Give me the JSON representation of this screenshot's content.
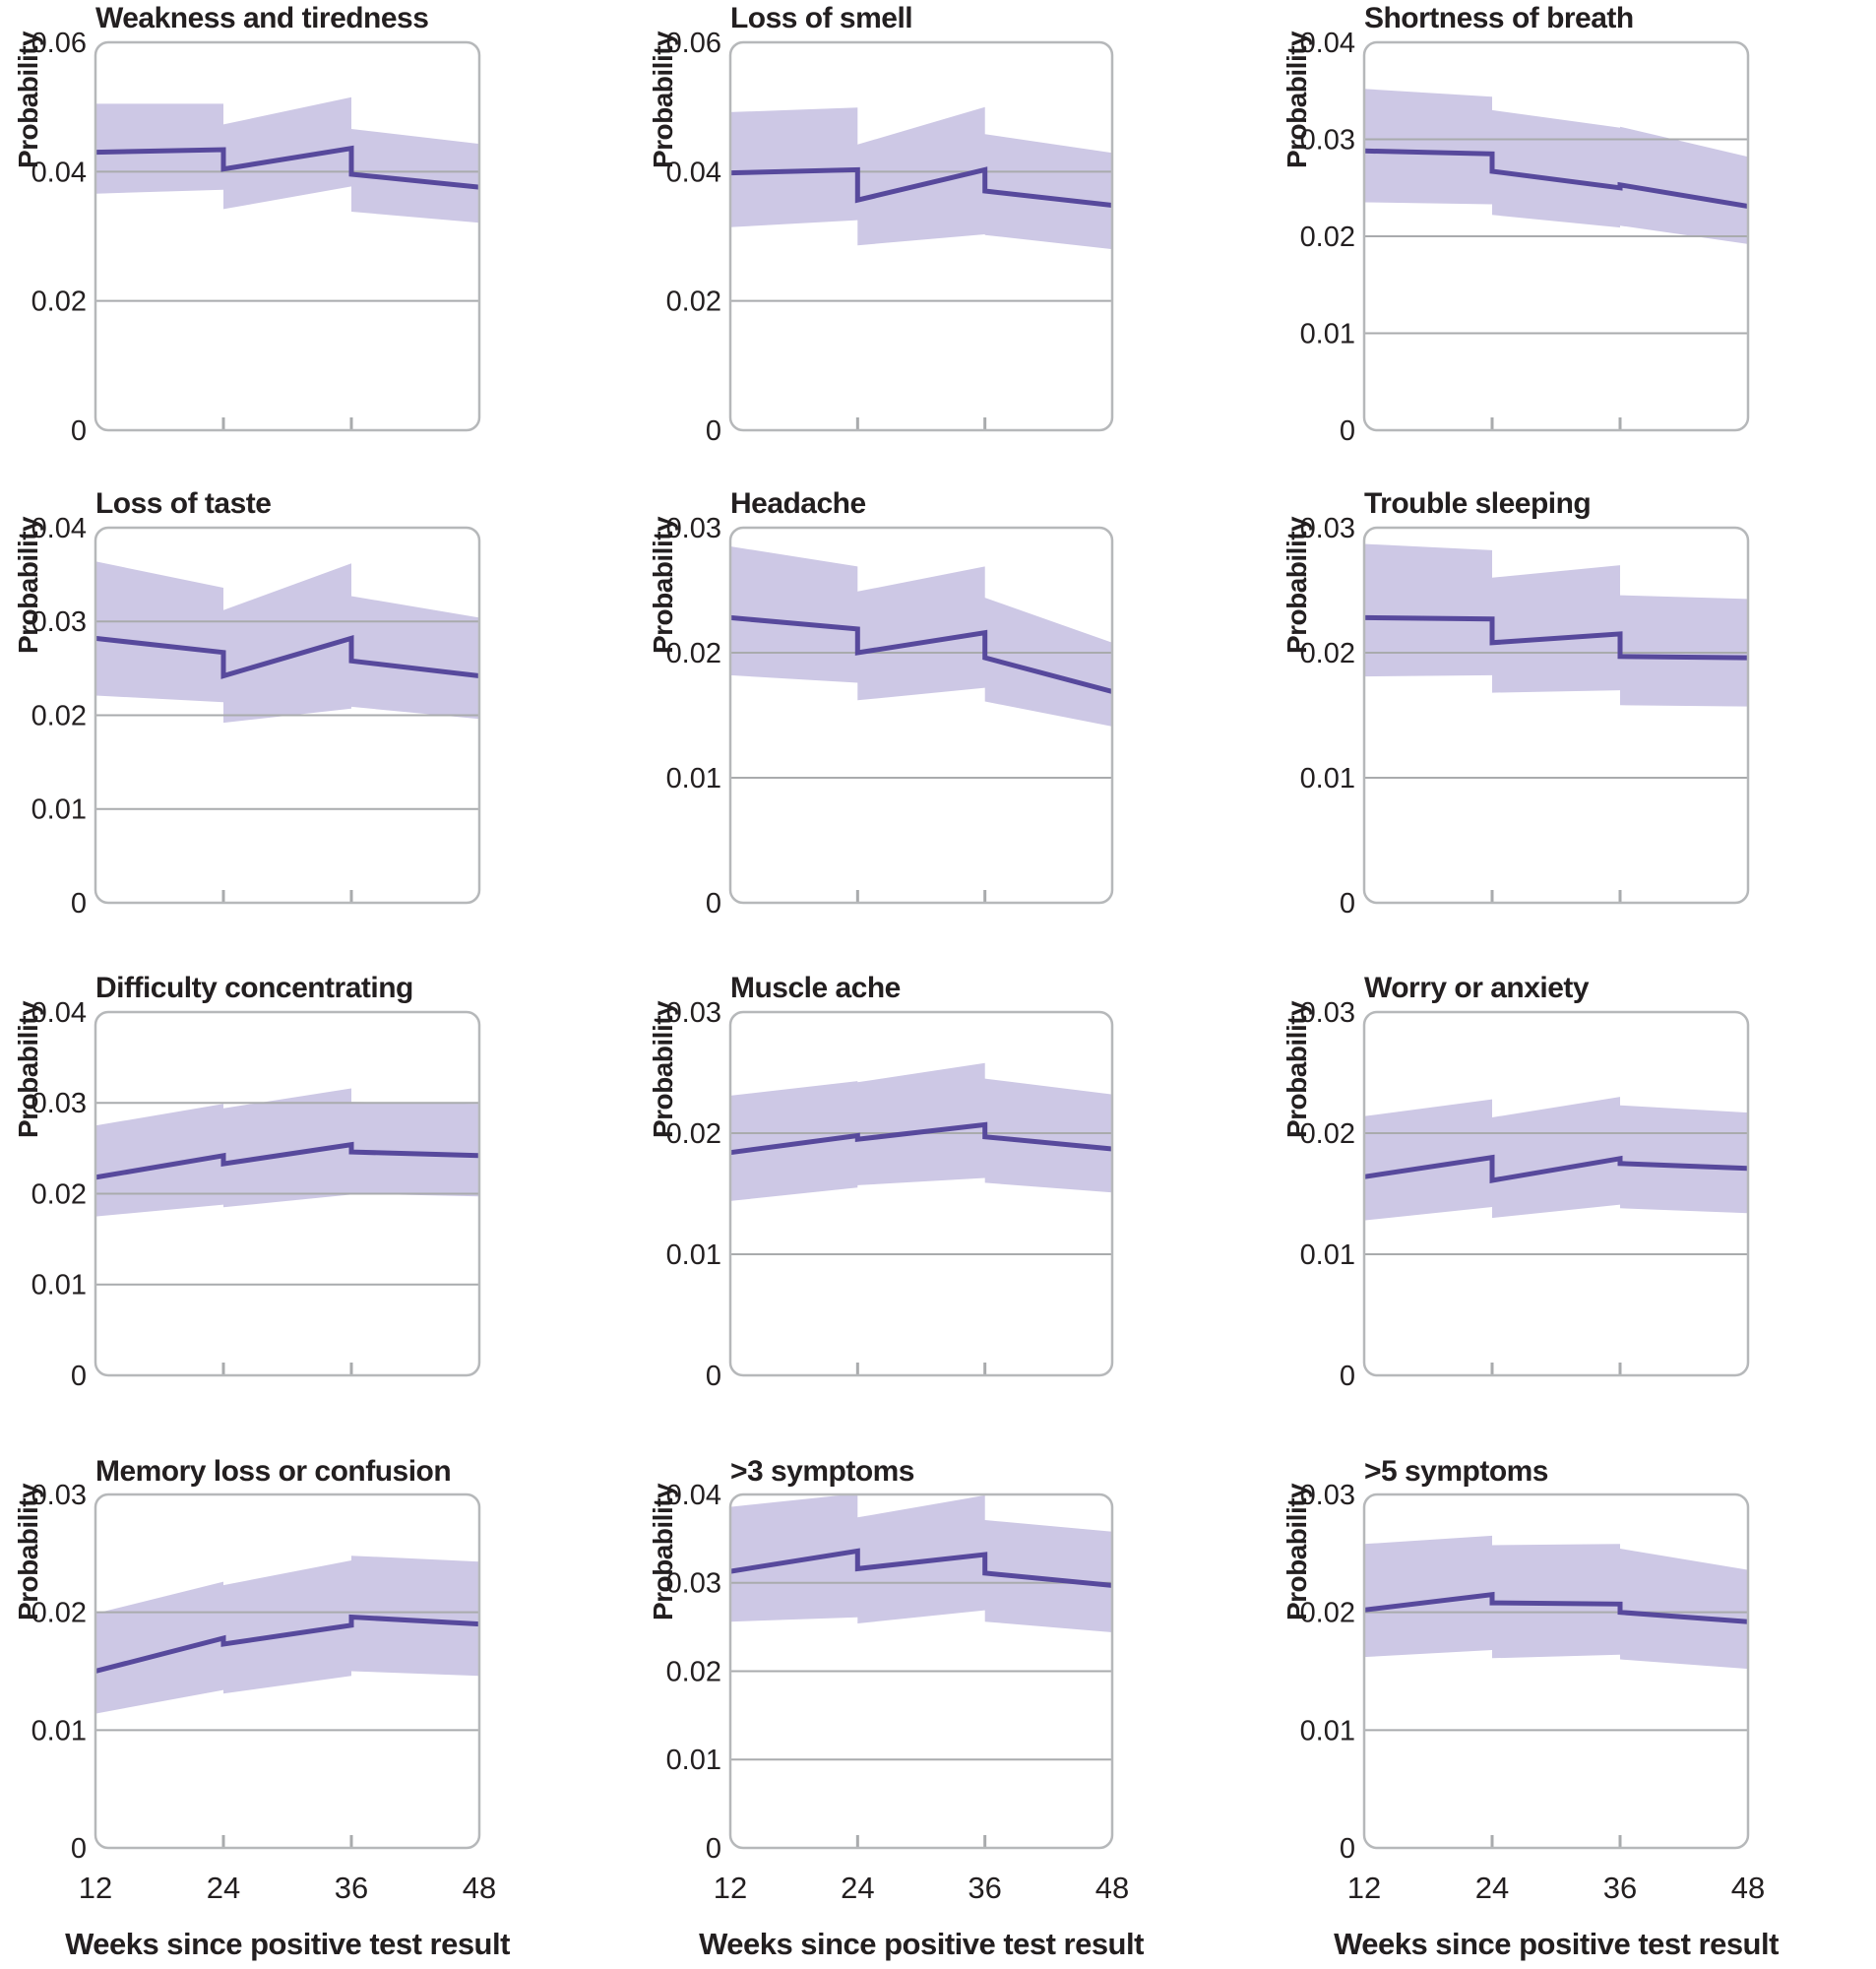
{
  "figure": {
    "ylabel": "Probability",
    "xlabel": "Weeks since positive test result",
    "xticks": [
      12,
      24,
      36,
      48
    ]
  },
  "colors": {
    "line": "#57499c",
    "band": "#cdc8e5",
    "grid": "#a9abad",
    "frame": "#b6b8ba",
    "text": "#231f20",
    "background": "#ffffff"
  },
  "chart_data": [
    {
      "type": "line",
      "title": "Weakness and tiredness",
      "ylim": [
        0,
        0.06
      ],
      "yticks": [
        0,
        0.02,
        0.04,
        0.06
      ],
      "xlabel": "Weeks since positive test result",
      "ylabel": "Probability",
      "x_unit": "weeks",
      "segments": [
        {
          "x": [
            12,
            24
          ],
          "line": [
            0.043,
            0.0434
          ],
          "upper": [
            0.0505,
            0.0505
          ],
          "lower": [
            0.0366,
            0.0372
          ]
        },
        {
          "x": [
            24,
            36
          ],
          "line": [
            0.0404,
            0.0436
          ],
          "upper": [
            0.0473,
            0.0515
          ],
          "lower": [
            0.0342,
            0.0377
          ]
        },
        {
          "x": [
            36,
            48
          ],
          "line": [
            0.0396,
            0.0376
          ],
          "upper": [
            0.0466,
            0.0443
          ],
          "lower": [
            0.0338,
            0.0321
          ]
        }
      ]
    },
    {
      "type": "line",
      "title": "Loss of smell",
      "ylim": [
        0,
        0.06
      ],
      "yticks": [
        0,
        0.02,
        0.04,
        0.06
      ],
      "xlabel": "Weeks since positive test result",
      "ylabel": "Probability",
      "x_unit": "weeks",
      "segments": [
        {
          "x": [
            12,
            24
          ],
          "line": [
            0.0398,
            0.0403
          ],
          "upper": [
            0.0492,
            0.0499
          ],
          "lower": [
            0.0314,
            0.0325
          ]
        },
        {
          "x": [
            24,
            36
          ],
          "line": [
            0.0356,
            0.0403
          ],
          "upper": [
            0.0442,
            0.05
          ],
          "lower": [
            0.0286,
            0.0303
          ]
        },
        {
          "x": [
            36,
            48
          ],
          "line": [
            0.037,
            0.0348
          ],
          "upper": [
            0.0458,
            0.0429
          ],
          "lower": [
            0.0302,
            0.028
          ]
        }
      ]
    },
    {
      "type": "line",
      "title": "Shortness of breath",
      "ylim": [
        0,
        0.04
      ],
      "yticks": [
        0,
        0.01,
        0.02,
        0.03,
        0.04
      ],
      "xlabel": "Weeks since positive test result",
      "ylabel": "Probability",
      "x_unit": "weeks",
      "segments": [
        {
          "x": [
            12,
            24
          ],
          "line": [
            0.0288,
            0.0285
          ],
          "upper": [
            0.0352,
            0.0344
          ],
          "lower": [
            0.0235,
            0.0233
          ]
        },
        {
          "x": [
            24,
            36
          ],
          "line": [
            0.0267,
            0.025
          ],
          "upper": [
            0.033,
            0.0312
          ],
          "lower": [
            0.0222,
            0.0209
          ]
        },
        {
          "x": [
            36,
            48
          ],
          "line": [
            0.0253,
            0.0231
          ],
          "upper": [
            0.0313,
            0.0282
          ],
          "lower": [
            0.0211,
            0.0192
          ]
        }
      ]
    },
    {
      "type": "line",
      "title": "Loss of taste",
      "ylim": [
        0,
        0.04
      ],
      "yticks": [
        0,
        0.01,
        0.02,
        0.03,
        0.04
      ],
      "xlabel": "Weeks since positive test result",
      "ylabel": "Probability",
      "x_unit": "weeks",
      "segments": [
        {
          "x": [
            12,
            24
          ],
          "line": [
            0.0282,
            0.0267
          ],
          "upper": [
            0.0364,
            0.0336
          ],
          "lower": [
            0.0221,
            0.0214
          ]
        },
        {
          "x": [
            24,
            36
          ],
          "line": [
            0.0242,
            0.0282
          ],
          "upper": [
            0.0312,
            0.0362
          ],
          "lower": [
            0.0192,
            0.0207
          ]
        },
        {
          "x": [
            36,
            48
          ],
          "line": [
            0.0258,
            0.0242
          ],
          "upper": [
            0.0327,
            0.0304
          ],
          "lower": [
            0.0209,
            0.0196
          ]
        }
      ]
    },
    {
      "type": "line",
      "title": "Headache",
      "ylim": [
        0,
        0.03
      ],
      "yticks": [
        0,
        0.01,
        0.02,
        0.03
      ],
      "xlabel": "Weeks since positive test result",
      "ylabel": "Probability",
      "x_unit": "weeks",
      "segments": [
        {
          "x": [
            12,
            24
          ],
          "line": [
            0.0228,
            0.0219
          ],
          "upper": [
            0.0285,
            0.0269
          ],
          "lower": [
            0.0182,
            0.0176
          ]
        },
        {
          "x": [
            24,
            36
          ],
          "line": [
            0.02,
            0.0216
          ],
          "upper": [
            0.0249,
            0.0269
          ],
          "lower": [
            0.0162,
            0.0172
          ]
        },
        {
          "x": [
            36,
            48
          ],
          "line": [
            0.0196,
            0.0169
          ],
          "upper": [
            0.0244,
            0.0208
          ],
          "lower": [
            0.0161,
            0.0141
          ]
        }
      ]
    },
    {
      "type": "line",
      "title": "Trouble sleeping",
      "ylim": [
        0,
        0.03
      ],
      "yticks": [
        0,
        0.01,
        0.02,
        0.03
      ],
      "xlabel": "Weeks since positive test result",
      "ylabel": "Probability",
      "x_unit": "weeks",
      "segments": [
        {
          "x": [
            12,
            24
          ],
          "line": [
            0.0228,
            0.0227
          ],
          "upper": [
            0.0287,
            0.0282
          ],
          "lower": [
            0.0181,
            0.0182
          ]
        },
        {
          "x": [
            24,
            36
          ],
          "line": [
            0.0208,
            0.0215
          ],
          "upper": [
            0.026,
            0.027
          ],
          "lower": [
            0.0168,
            0.017
          ]
        },
        {
          "x": [
            36,
            48
          ],
          "line": [
            0.0197,
            0.0196
          ],
          "upper": [
            0.0246,
            0.0243
          ],
          "lower": [
            0.0158,
            0.0157
          ]
        }
      ]
    },
    {
      "type": "line",
      "title": "Difficulty concentrating",
      "ylim": [
        0,
        0.04
      ],
      "yticks": [
        0,
        0.01,
        0.02,
        0.03,
        0.04
      ],
      "xlabel": "Weeks since positive test result",
      "ylabel": "Probability",
      "x_unit": "weeks",
      "segments": [
        {
          "x": [
            12,
            24
          ],
          "line": [
            0.0218,
            0.0242
          ],
          "upper": [
            0.0275,
            0.0299
          ],
          "lower": [
            0.0175,
            0.0188
          ]
        },
        {
          "x": [
            24,
            36
          ],
          "line": [
            0.0233,
            0.0254
          ],
          "upper": [
            0.0294,
            0.0316
          ],
          "lower": [
            0.0185,
            0.0199
          ]
        },
        {
          "x": [
            36,
            48
          ],
          "line": [
            0.0246,
            0.0242
          ],
          "upper": [
            0.0301,
            0.0299
          ],
          "lower": [
            0.02,
            0.0197
          ]
        }
      ]
    },
    {
      "type": "line",
      "title": "Muscle ache",
      "ylim": [
        0,
        0.03
      ],
      "yticks": [
        0,
        0.01,
        0.02,
        0.03
      ],
      "xlabel": "Weeks since positive test result",
      "ylabel": "Probability",
      "x_unit": "weeks",
      "segments": [
        {
          "x": [
            12,
            24
          ],
          "line": [
            0.0184,
            0.0198
          ],
          "upper": [
            0.0231,
            0.0243
          ],
          "lower": [
            0.0144,
            0.0155
          ]
        },
        {
          "x": [
            24,
            36
          ],
          "line": [
            0.0195,
            0.0207
          ],
          "upper": [
            0.0242,
            0.0258
          ],
          "lower": [
            0.0157,
            0.0163
          ]
        },
        {
          "x": [
            36,
            48
          ],
          "line": [
            0.0197,
            0.0187
          ],
          "upper": [
            0.0245,
            0.0232
          ],
          "lower": [
            0.0159,
            0.0151
          ]
        }
      ]
    },
    {
      "type": "line",
      "title": "Worry or anxiety",
      "ylim": [
        0,
        0.03
      ],
      "yticks": [
        0,
        0.01,
        0.02,
        0.03
      ],
      "xlabel": "Weeks since positive test result",
      "ylabel": "Probability",
      "x_unit": "weeks",
      "segments": [
        {
          "x": [
            12,
            24
          ],
          "line": [
            0.0164,
            0.018
          ],
          "upper": [
            0.0214,
            0.0228
          ],
          "lower": [
            0.0128,
            0.0139
          ]
        },
        {
          "x": [
            24,
            36
          ],
          "line": [
            0.0161,
            0.0179
          ],
          "upper": [
            0.0213,
            0.023
          ],
          "lower": [
            0.013,
            0.0141
          ]
        },
        {
          "x": [
            36,
            48
          ],
          "line": [
            0.0175,
            0.0171
          ],
          "upper": [
            0.0223,
            0.0217
          ],
          "lower": [
            0.0138,
            0.0134
          ]
        }
      ]
    },
    {
      "type": "line",
      "title": "Memory loss or confusion",
      "ylim": [
        0,
        0.03
      ],
      "yticks": [
        0,
        0.01,
        0.02,
        0.03
      ],
      "xlabel": "Weeks since positive test result",
      "ylabel": "Probability",
      "x_unit": "weeks",
      "segments": [
        {
          "x": [
            12,
            24
          ],
          "line": [
            0.015,
            0.0178
          ],
          "upper": [
            0.0199,
            0.0226
          ],
          "lower": [
            0.0114,
            0.0134
          ]
        },
        {
          "x": [
            24,
            36
          ],
          "line": [
            0.0173,
            0.0189
          ],
          "upper": [
            0.0223,
            0.0244
          ],
          "lower": [
            0.0131,
            0.0146
          ]
        },
        {
          "x": [
            36,
            48
          ],
          "line": [
            0.0196,
            0.019
          ],
          "upper": [
            0.0248,
            0.0243
          ],
          "lower": [
            0.015,
            0.0146
          ]
        }
      ]
    },
    {
      "type": "line",
      "title": ">3 symptoms",
      "ylim": [
        0,
        0.04
      ],
      "yticks": [
        0,
        0.01,
        0.02,
        0.03,
        0.04
      ],
      "xlabel": "Weeks since positive test result",
      "ylabel": "Probability",
      "x_unit": "weeks",
      "segments": [
        {
          "x": [
            12,
            24
          ],
          "line": [
            0.0313,
            0.0336
          ],
          "upper": [
            0.0386,
            0.0401
          ],
          "lower": [
            0.0256,
            0.0261
          ]
        },
        {
          "x": [
            24,
            36
          ],
          "line": [
            0.0316,
            0.0332
          ],
          "upper": [
            0.0374,
            0.0399
          ],
          "lower": [
            0.0254,
            0.0269
          ]
        },
        {
          "x": [
            36,
            48
          ],
          "line": [
            0.0311,
            0.0297
          ],
          "upper": [
            0.0371,
            0.0358
          ],
          "lower": [
            0.0256,
            0.0244
          ]
        }
      ]
    },
    {
      "type": "line",
      "title": ">5 symptoms",
      "ylim": [
        0,
        0.03
      ],
      "yticks": [
        0,
        0.01,
        0.02,
        0.03
      ],
      "xlabel": "Weeks since positive test result",
      "ylabel": "Probability",
      "x_unit": "weeks",
      "segments": [
        {
          "x": [
            12,
            24
          ],
          "line": [
            0.0202,
            0.0215
          ],
          "upper": [
            0.0258,
            0.0265
          ],
          "lower": [
            0.0162,
            0.0168
          ]
        },
        {
          "x": [
            24,
            36
          ],
          "line": [
            0.0208,
            0.0207
          ],
          "upper": [
            0.0257,
            0.0258
          ],
          "lower": [
            0.0161,
            0.0164
          ]
        },
        {
          "x": [
            36,
            48
          ],
          "line": [
            0.02,
            0.0192
          ],
          "upper": [
            0.0254,
            0.0236
          ],
          "lower": [
            0.016,
            0.0152
          ]
        }
      ]
    }
  ]
}
